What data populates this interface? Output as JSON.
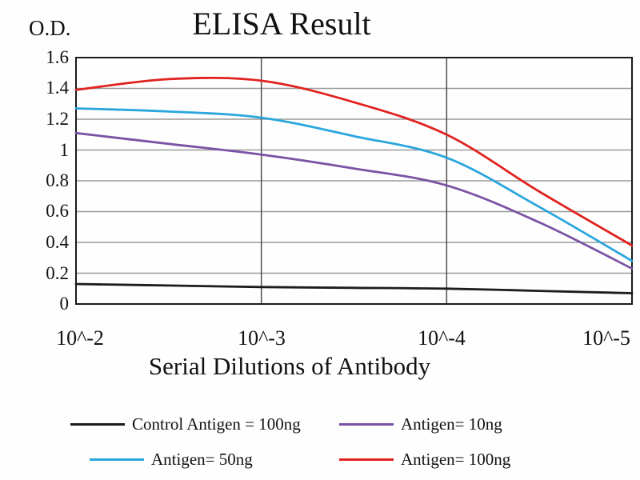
{
  "chart_data": {
    "type": "line",
    "title": "ELISA Result",
    "ylabel": "O.D.",
    "xlabel": "Serial Dilutions of Antibody",
    "ylim": [
      0,
      1.6
    ],
    "xlim": [
      0,
      3
    ],
    "grid": "horizontal gray lines every 0.2; vertical dark lines at 10^-3 and 10^-4; black plot border",
    "legend_position": "bottom",
    "ytick_labels": [
      "1.6",
      "1.4",
      "1.2",
      "1",
      "0.8",
      "0.6",
      "0.4",
      "0.2",
      "0"
    ],
    "ytick_values": [
      1.6,
      1.4,
      1.2,
      1,
      0.8,
      0.6,
      0.4,
      0.2,
      0
    ],
    "xtick_labels": [
      "10^-2",
      "10^-3",
      "10^-4",
      "10^-5"
    ],
    "xtick_positions": [
      0,
      1,
      2,
      3
    ],
    "vgrid_positions": [
      1,
      2
    ],
    "x_positions": [
      0,
      0.5,
      1,
      1.5,
      2,
      2.5,
      3
    ],
    "series": [
      {
        "name": "Control Antigen = 100ng",
        "color": "#1c1c1c",
        "values": [
          0.13,
          0.12,
          0.11,
          0.105,
          0.1,
          0.085,
          0.07
        ]
      },
      {
        "name": "Antigen= 10ng",
        "color": "#7a52a4",
        "values": [
          1.11,
          1.04,
          0.97,
          0.88,
          0.77,
          0.53,
          0.23
        ]
      },
      {
        "name": "Antigen= 50ng",
        "color": "#2aa6dd",
        "values": [
          1.27,
          1.25,
          1.21,
          1.09,
          0.95,
          0.63,
          0.28
        ]
      },
      {
        "name": "Antigen= 100ng",
        "color": "#e02220",
        "values": [
          1.39,
          1.46,
          1.45,
          1.31,
          1.1,
          0.73,
          0.38
        ]
      }
    ]
  }
}
